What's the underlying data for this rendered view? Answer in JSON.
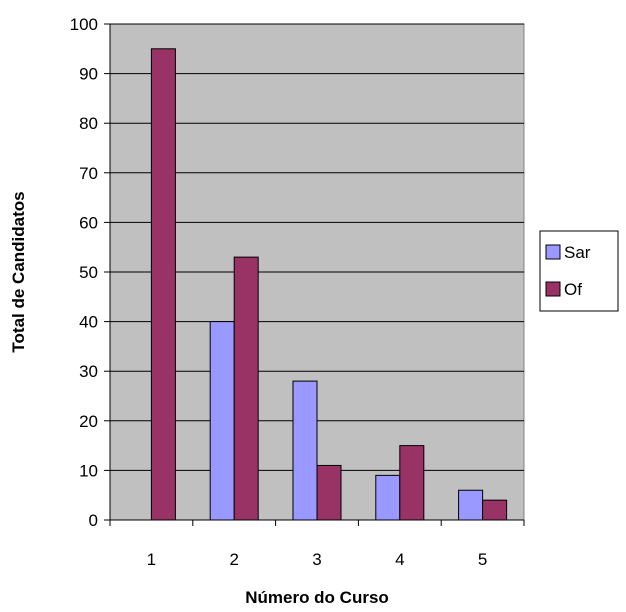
{
  "chart_data": {
    "type": "bar",
    "title": "",
    "xlabel": "Número do Curso",
    "ylabel": "Total de Candidatos",
    "categories": [
      "1",
      "2",
      "3",
      "4",
      "5"
    ],
    "series": [
      {
        "name": "Sar",
        "values": [
          0,
          40,
          28,
          9,
          6
        ],
        "color": "#9999ff"
      },
      {
        "name": "Of",
        "values": [
          95,
          53,
          11,
          15,
          4
        ],
        "color": "#993366"
      }
    ],
    "ylim": [
      0,
      100
    ],
    "yticks": [
      "0",
      "10",
      "20",
      "30",
      "40",
      "50",
      "60",
      "70",
      "80",
      "90",
      "100"
    ],
    "grid": true,
    "plot_background": "#c0c0c0",
    "legend_position": "right"
  }
}
